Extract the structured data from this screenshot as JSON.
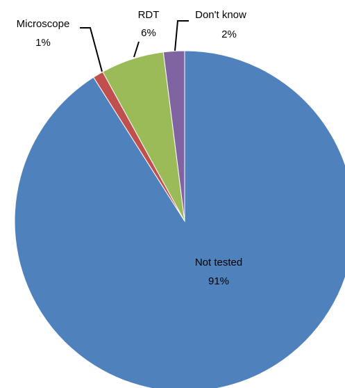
{
  "chart_data": {
    "type": "pie",
    "categories": [
      "Not tested",
      "Microscope",
      "RDT",
      "Don't know"
    ],
    "values": [
      91,
      1,
      6,
      2
    ],
    "value_labels": [
      "91%",
      "1%",
      "6%",
      "2%"
    ],
    "colors": [
      "#4f81bd",
      "#c0504d",
      "#9bbb59",
      "#8064a2"
    ]
  }
}
